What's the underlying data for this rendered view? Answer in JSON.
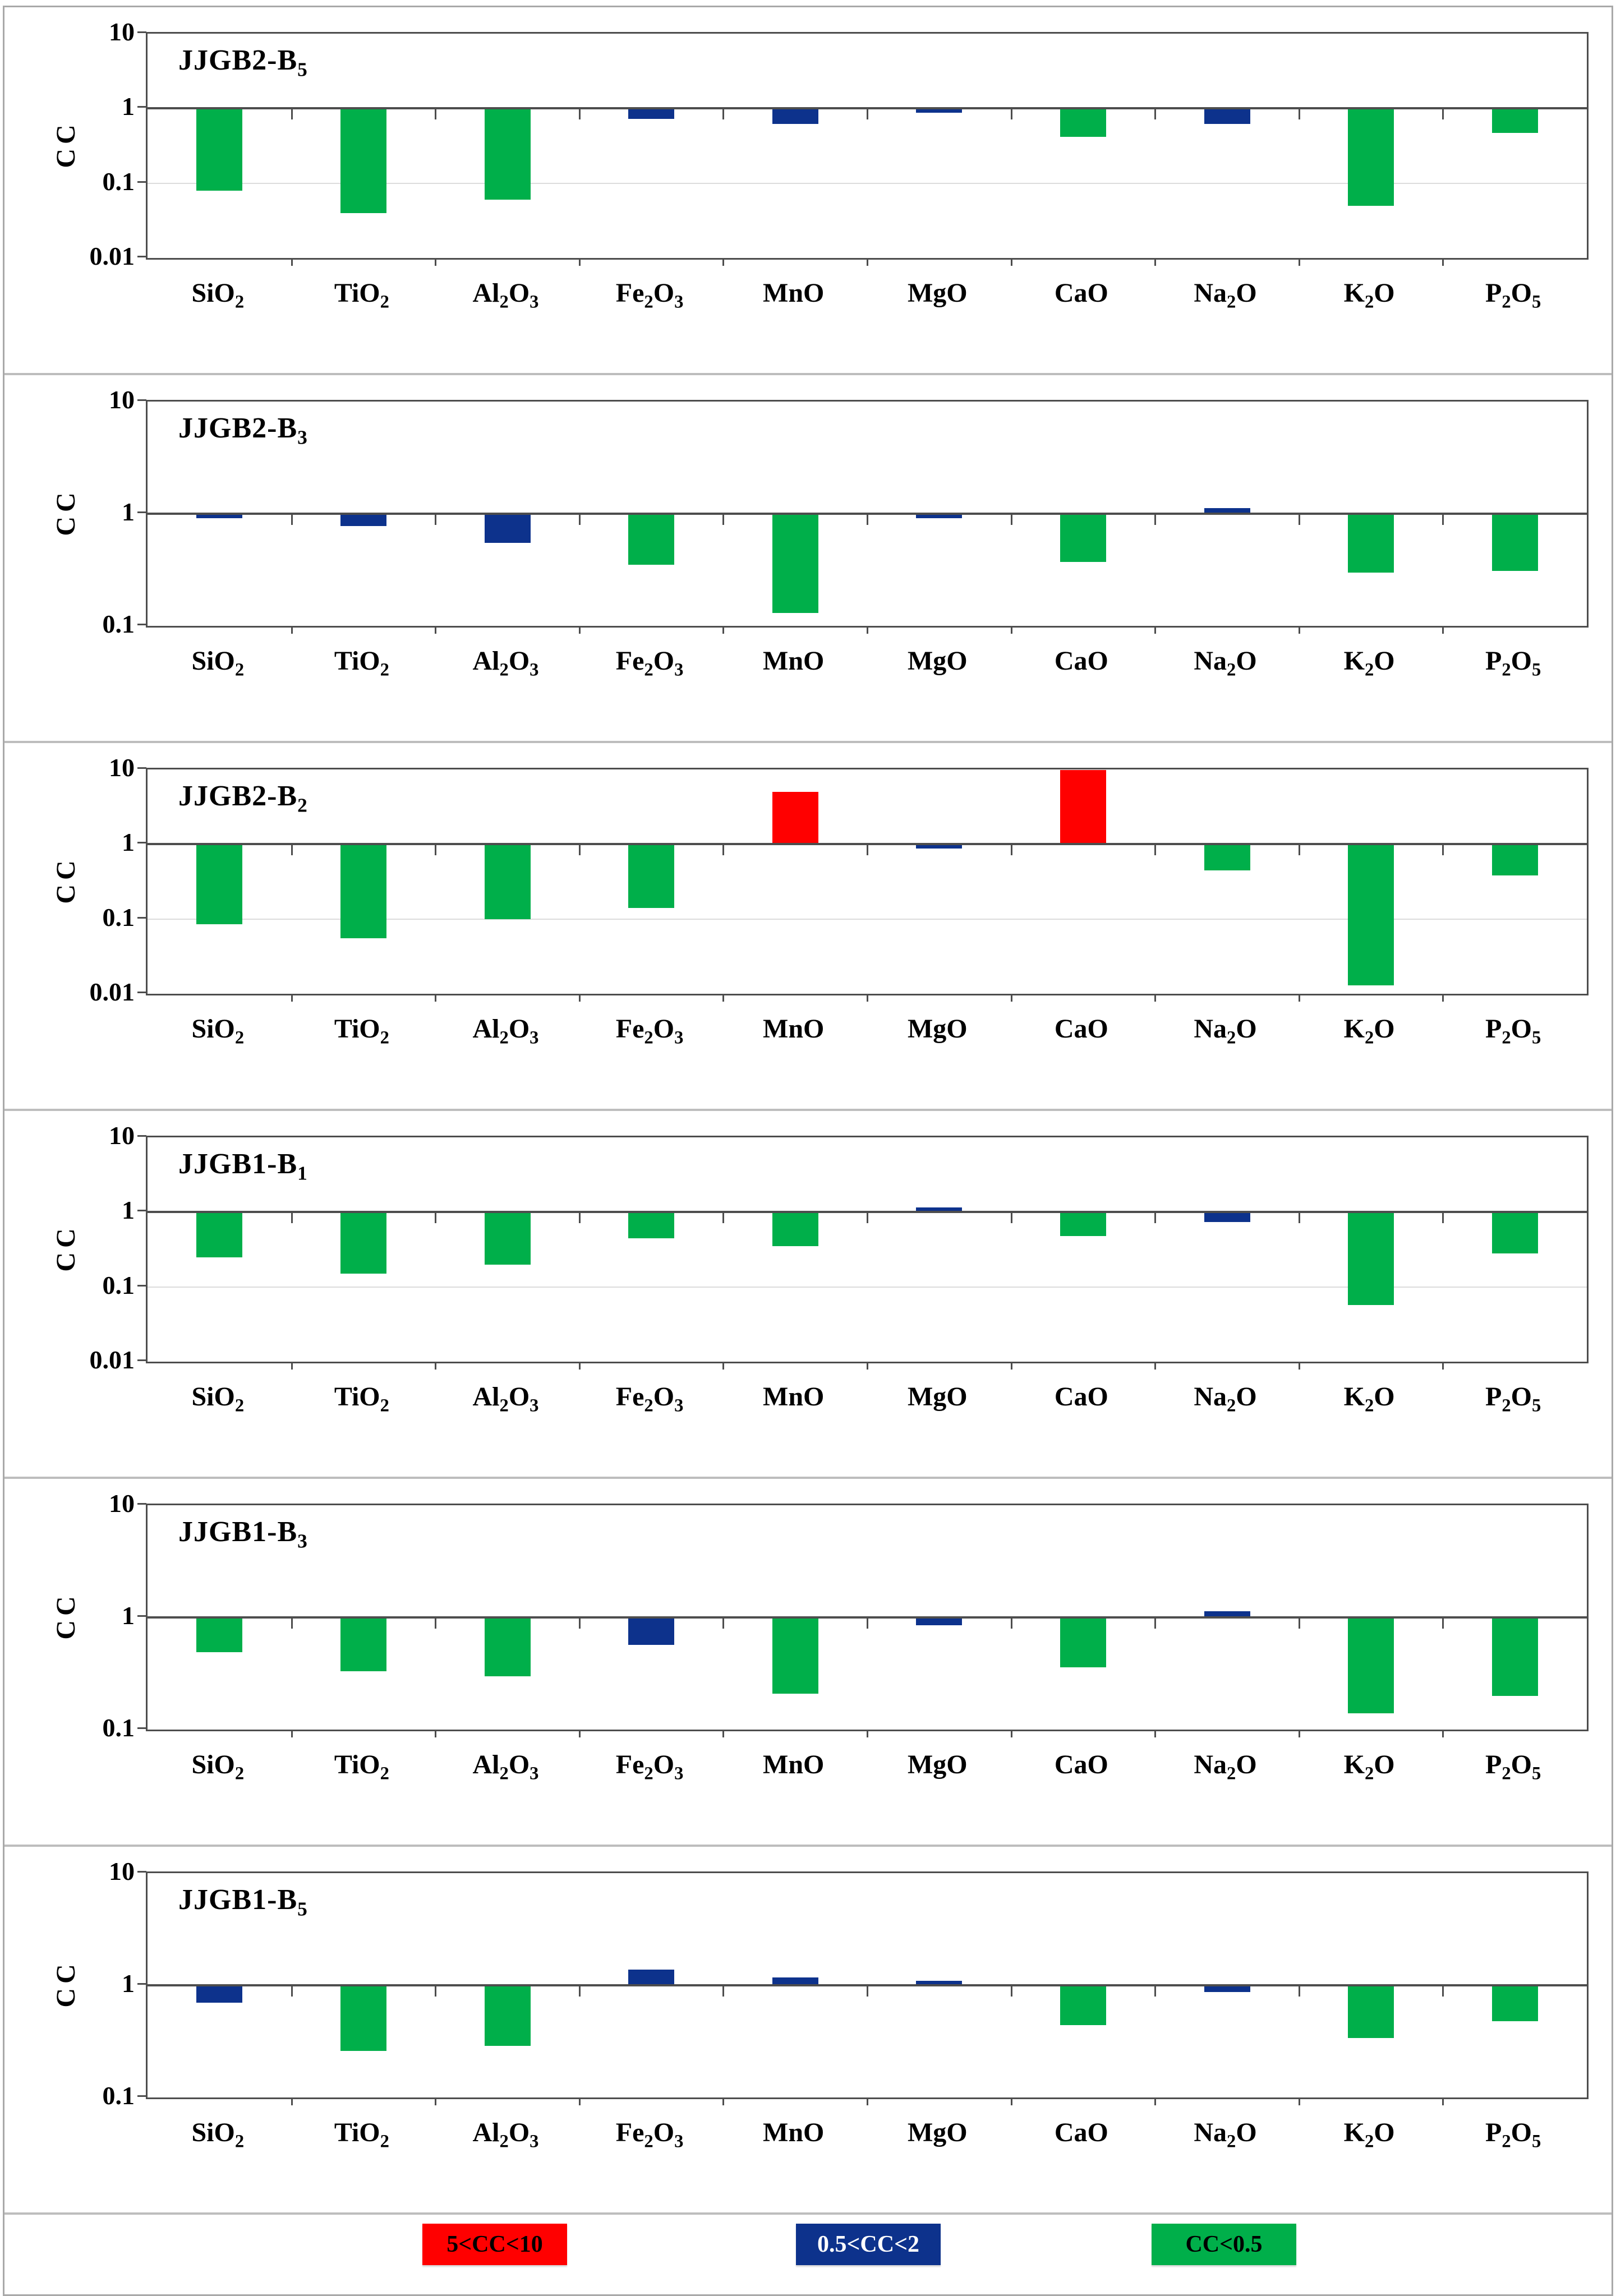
{
  "chart_data": {
    "type": "bar",
    "yscale": "log",
    "ylabel": "CC",
    "grid": "baseline at CC=1, light gridline at 0.1 on 3-decade panels",
    "legend_position": "bottom",
    "categories": [
      "SiO2",
      "TiO2",
      "Al2O3",
      "Fe2O3",
      "MnO",
      "MgO",
      "CaO",
      "Na2O",
      "K2O",
      "P2O5"
    ],
    "panels": [
      {
        "title": "JJGB2-B5",
        "ylim": [
          0.01,
          10
        ],
        "yticks": [
          "10",
          "1",
          "0.1",
          "0.01"
        ],
        "values": [
          0.08,
          0.04,
          0.06,
          0.72,
          0.62,
          0.97,
          0.42,
          0.62,
          0.05,
          0.47
        ]
      },
      {
        "title": "JJGB2-B3",
        "ylim": [
          0.1,
          10
        ],
        "yticks": [
          "10",
          "1",
          "0.1"
        ],
        "values": [
          0.91,
          0.78,
          0.55,
          0.35,
          0.13,
          0.92,
          0.37,
          1.12,
          0.3,
          0.31
        ]
      },
      {
        "title": "JJGB2-B2",
        "ylim": [
          0.01,
          10
        ],
        "yticks": [
          "10",
          "1",
          "0.1",
          "0.01"
        ],
        "values": [
          0.085,
          0.055,
          0.1,
          0.14,
          5.0,
          0.97,
          9.8,
          0.45,
          0.013,
          0.38
        ]
      },
      {
        "title": "JJGB1-B1",
        "ylim": [
          0.01,
          10
        ],
        "yticks": [
          "10",
          "1",
          "0.1",
          "0.01"
        ],
        "values": [
          0.25,
          0.15,
          0.2,
          0.45,
          0.35,
          1.02,
          0.48,
          0.74,
          0.057,
          0.28
        ]
      },
      {
        "title": "JJGB1-B3",
        "ylim": [
          0.1,
          10
        ],
        "yticks": [
          "10",
          "1",
          "0.1"
        ],
        "values": [
          0.49,
          0.33,
          0.3,
          0.57,
          0.21,
          0.85,
          0.36,
          1.13,
          0.14,
          0.2
        ]
      },
      {
        "title": "JJGB1-B5",
        "ylim": [
          0.1,
          10
        ],
        "yticks": [
          "10",
          "1",
          "0.1"
        ],
        "values": [
          0.7,
          0.26,
          0.29,
          1.38,
          1.18,
          1.06,
          0.44,
          0.87,
          0.34,
          0.48
        ]
      }
    ],
    "legend": [
      {
        "label": "5<CC<10",
        "color": "#FF0000",
        "text_color": "#000000",
        "range": "5 to 10"
      },
      {
        "label": "0.5<CC<2",
        "color": "#0D328C",
        "text_color": "#FFFFFF",
        "range": "0.5 to 2"
      },
      {
        "label": "CC<0.5",
        "color": "#00AF4A",
        "text_color": "#000000",
        "range": "below 0.5"
      }
    ],
    "color_rules": {
      "red_if_at_least": 5,
      "green_if_below": 0.5,
      "blue_otherwise": true
    }
  }
}
